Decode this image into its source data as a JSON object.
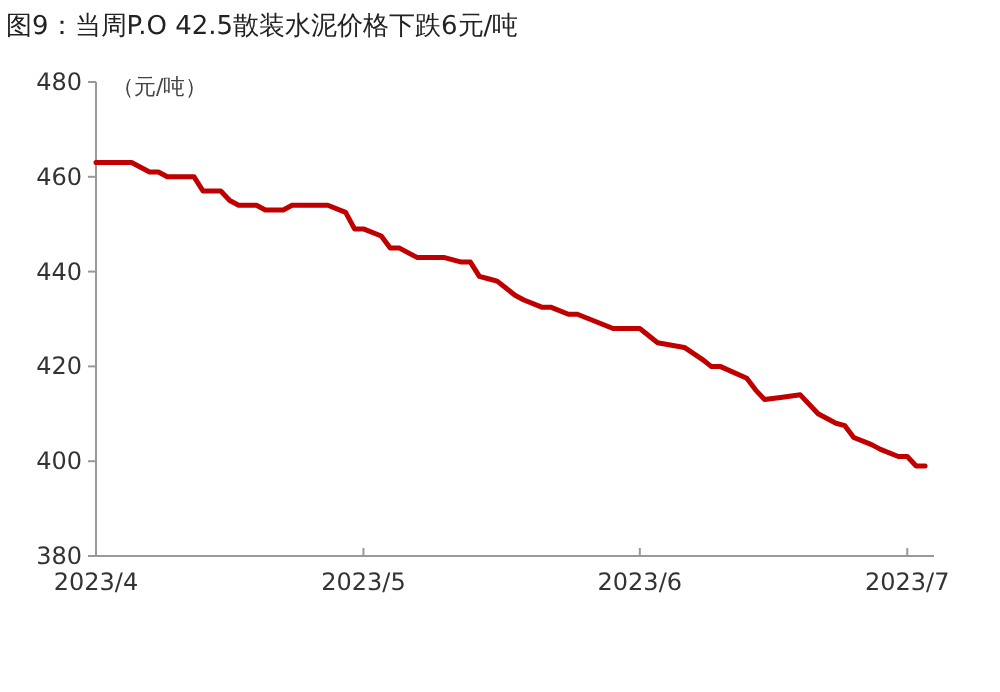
{
  "chart_data": {
    "type": "line",
    "title": "图9：当周P.O 42.5散装水泥价格下跌6元/吨",
    "ylabel": "（元/吨）",
    "x": [
      "2023-04-01",
      "2023-04-05",
      "2023-04-07",
      "2023-04-08",
      "2023-04-09",
      "2023-04-12",
      "2023-04-13",
      "2023-04-15",
      "2023-04-16",
      "2023-04-17",
      "2023-04-19",
      "2023-04-20",
      "2023-04-22",
      "2023-04-23",
      "2023-04-27",
      "2023-04-29",
      "2023-04-30",
      "2023-05-01",
      "2023-05-03",
      "2023-05-04",
      "2023-05-05",
      "2023-05-07",
      "2023-05-10",
      "2023-05-12",
      "2023-05-13",
      "2023-05-14",
      "2023-05-15",
      "2023-05-16",
      "2023-05-18",
      "2023-05-19",
      "2023-05-21",
      "2023-05-22",
      "2023-05-24",
      "2023-05-25",
      "2023-05-29",
      "2023-06-01",
      "2023-06-03",
      "2023-06-06",
      "2023-06-08",
      "2023-06-09",
      "2023-06-10",
      "2023-06-13",
      "2023-06-14",
      "2023-06-15",
      "2023-06-17",
      "2023-06-19",
      "2023-06-21",
      "2023-06-23",
      "2023-06-24",
      "2023-06-25",
      "2023-06-27",
      "2023-06-28",
      "2023-06-30",
      "2023-07-01",
      "2023-07-02",
      "2023-07-03"
    ],
    "series": [
      {
        "color": "#c00000",
        "values": [
          463,
          463,
          461,
          461,
          460,
          460,
          457,
          457,
          455,
          454,
          454,
          453,
          453,
          454,
          454,
          452.5,
          449,
          449,
          447.5,
          445,
          445,
          443,
          443,
          442,
          442,
          439,
          438.5,
          438,
          435,
          434,
          432.5,
          432.5,
          431,
          431,
          428,
          428,
          425,
          424,
          421.5,
          420,
          420,
          417.5,
          415,
          413,
          413.5,
          414,
          410,
          408,
          407.5,
          405,
          403.5,
          402.5,
          401,
          401,
          399,
          399
        ]
      }
    ],
    "xlim": [
      "2023-04-01",
      "2023-07-04"
    ],
    "xticks": [
      {
        "value": "2023-04-01",
        "label": "2023/4"
      },
      {
        "value": "2023-05-01",
        "label": "2023/5"
      },
      {
        "value": "2023-06-01",
        "label": "2023/6"
      },
      {
        "value": "2023-07-01",
        "label": "2023/7"
      }
    ],
    "ylim": [
      380,
      480
    ],
    "yticks": [
      380,
      400,
      420,
      440,
      460,
      480
    ]
  }
}
